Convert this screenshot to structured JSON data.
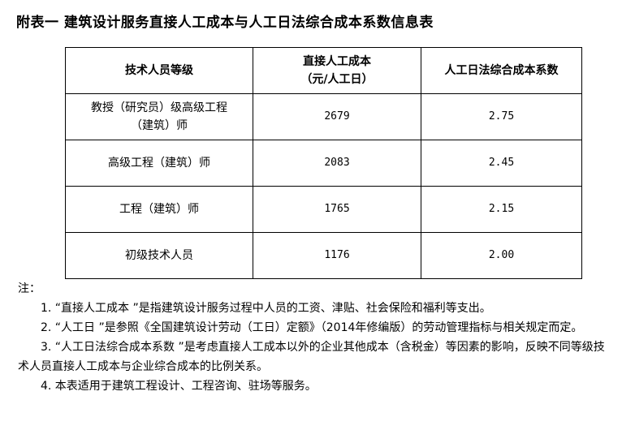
{
  "title": "附表一  建筑设计服务直接人工成本与人工日法综合成本系数信息表",
  "table": {
    "headers": [
      "技术人员等级",
      "直接人工成本",
      "（元/人工日）",
      "人工日法综合成本系数"
    ],
    "rows": [
      {
        "level_line1": "教授（研究员）级高级工程",
        "level_line2": "（建筑）师",
        "cost": "2679",
        "coef": "2.75"
      },
      {
        "level_line1": "高级工程（建筑）师",
        "cost": "2083",
        "coef": "2.45"
      },
      {
        "level_line1": "工程（建筑）师",
        "cost": "1765",
        "coef": "2.15"
      },
      {
        "level_line1": "初级技术人员",
        "cost": "1176",
        "coef": "2.00"
      }
    ]
  },
  "notes": {
    "label": "注：",
    "items": [
      "1. “直接人工成本 ”是指建筑设计服务过程中人员的工资、津贴、社会保险和福利等支出。",
      "2. “人工日 ”是参照《全国建筑设计劳动（工日）定额》（2014年修编版）的劳动管理指标与相关规定而定。",
      "3. “人工日法综合成本系数 ”是考虑直接人工成本以外的企业其他成本（含税金）等因素的影响，反映不同等级技术人员直接人工成本与企业综合成本的比例关系。",
      "4. 本表适用于建筑工程设计、工程咨询、驻场等服务。"
    ]
  }
}
